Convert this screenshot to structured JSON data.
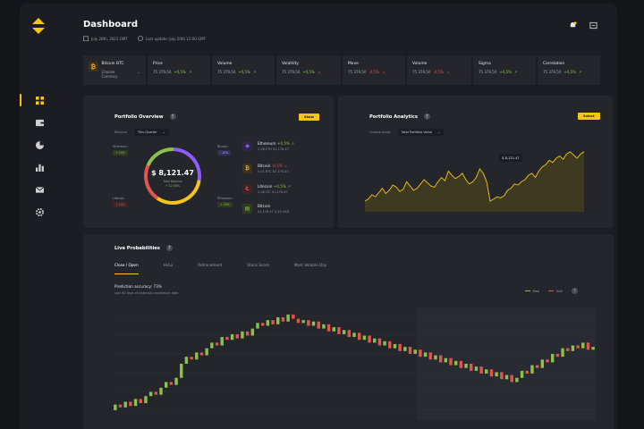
{
  "header": {
    "title": "Dashboard",
    "date": "July 20th, 2023 GMT",
    "last_update": "Last update: July 20th 12:00 GMT"
  },
  "ticker": [
    {
      "label": "Bitcoin BTC",
      "sub": "Choose Currency"
    },
    {
      "label": "Price",
      "value": "75 379,50",
      "change": "+0,5%"
    },
    {
      "label": "Volume",
      "value": "75 379,50",
      "change": "+0,5%"
    },
    {
      "label": "Volatility",
      "value": "75 379,50",
      "change": "+0,5%"
    },
    {
      "label": "Move",
      "value": "75 379,50",
      "change": "-0,5%"
    },
    {
      "label": "Volume",
      "value": "75 379,50",
      "change": "-0,5%"
    },
    {
      "label": "Sigma",
      "value": "75 379,50",
      "change": "+0,5%"
    },
    {
      "label": "Correlation",
      "value": "75 379,50",
      "change": "+0,5%"
    }
  ],
  "portfolio": {
    "title": "Portfolio Overview",
    "button": "Show",
    "field_label": "Balance",
    "field_value": "This Quarter",
    "total": "$ 8,121.47",
    "total_sub": "Total Balance",
    "total_change": "+ 12,50%",
    "slices": [
      {
        "name": "Ethereum",
        "tag": "+ 20%",
        "color": "#8e5cf7",
        "value": 28
      },
      {
        "name": "Bitcoin",
        "tag": "- 15%",
        "color": "#f5c518",
        "value": 32
      },
      {
        "name": "Litecoin",
        "tag": "+ 10%",
        "color": "#e0554f",
        "value": 22
      },
      {
        "name": "Ethereum",
        "tag": "+ 20%",
        "color": "#8bc34a",
        "value": 18
      }
    ],
    "assets": [
      {
        "name": "Ethereum",
        "change": "+0,5%",
        "sub": "2,08 ETH  $2,178.47",
        "icon": "ethereum-icon",
        "color": "#8e5cf7"
      },
      {
        "name": "Bitcoin",
        "change": "-0,5%",
        "sub": "0,01 BTC  $3,178.47",
        "icon": "bitcoin-icon",
        "color": "#f5a623"
      },
      {
        "name": "Litecoin",
        "change": "+0,5%",
        "sub": "2,08 LTC  $1,178.47",
        "icon": "litecoin-icon",
        "color": "#e0554f"
      },
      {
        "name": "Bitcoin",
        "change": "",
        "sub": "$1,178.47  4,19 USD",
        "icon": "cash-icon",
        "color": "#8bc34a"
      }
    ]
  },
  "analytics": {
    "title": "Portfolio Analytics",
    "button": "Select",
    "field_label": "Choose Asset",
    "field_value": "Total Portfolio Value",
    "tooltip": "$ 8,121.47"
  },
  "live": {
    "title": "Live Probabilities",
    "tabs": [
      "Close / Open",
      "Hi/Lo",
      "Retracement",
      "Stock Score",
      "Most Volatile Day"
    ],
    "prediction": "Prediction accuracy: 73%",
    "prediction_sub": "Last 90 days of historical candlestick data",
    "legend": [
      {
        "name": "Real",
        "color": "#8bc34a"
      },
      {
        "name": "Bull",
        "color": "#e0554f"
      }
    ]
  },
  "chart_data": [
    {
      "type": "area",
      "title": "Portfolio Analytics",
      "values": [
        40,
        42,
        46,
        44,
        48,
        52,
        47,
        50,
        55,
        53,
        49,
        51,
        58,
        54,
        50,
        52,
        56,
        60,
        57,
        54,
        53,
        58,
        62,
        59,
        68,
        64,
        61,
        63,
        66,
        60,
        56,
        58,
        62,
        70,
        66,
        58,
        40,
        42,
        44,
        43,
        45,
        50,
        52,
        56,
        55,
        58,
        60,
        64,
        66,
        62,
        68,
        72,
        74,
        78,
        76,
        80,
        82,
        79,
        84,
        86,
        83,
        80,
        84,
        86
      ]
    },
    {
      "type": "candlestick",
      "title": "Live Probabilities",
      "values": [
        [
          22,
          26
        ],
        [
          26,
          24
        ],
        [
          24,
          28
        ],
        [
          28,
          25
        ],
        [
          25,
          30
        ],
        [
          30,
          27
        ],
        [
          27,
          32
        ],
        [
          32,
          35
        ],
        [
          35,
          33
        ],
        [
          33,
          38
        ],
        [
          38,
          42
        ],
        [
          42,
          40
        ],
        [
          40,
          45
        ],
        [
          45,
          55
        ],
        [
          55,
          60
        ],
        [
          60,
          58
        ],
        [
          58,
          63
        ],
        [
          63,
          61
        ],
        [
          61,
          66
        ],
        [
          66,
          70
        ],
        [
          70,
          68
        ],
        [
          68,
          74
        ],
        [
          74,
          72
        ],
        [
          72,
          76
        ],
        [
          76,
          73
        ],
        [
          73,
          78
        ],
        [
          78,
          75
        ],
        [
          75,
          80
        ],
        [
          80,
          84
        ],
        [
          84,
          82
        ],
        [
          82,
          86
        ],
        [
          86,
          83
        ],
        [
          83,
          88
        ],
        [
          88,
          85
        ],
        [
          85,
          90
        ],
        [
          90,
          87
        ],
        [
          87,
          84
        ],
        [
          84,
          86
        ],
        [
          86,
          82
        ],
        [
          82,
          85
        ],
        [
          85,
          80
        ],
        [
          80,
          83
        ],
        [
          83,
          78
        ],
        [
          78,
          81
        ],
        [
          81,
          76
        ],
        [
          76,
          79
        ],
        [
          79,
          74
        ],
        [
          74,
          77
        ],
        [
          77,
          72
        ],
        [
          72,
          75
        ],
        [
          75,
          70
        ],
        [
          70,
          73
        ],
        [
          73,
          68
        ],
        [
          68,
          71
        ],
        [
          71,
          66
        ],
        [
          66,
          69
        ],
        [
          69,
          64
        ],
        [
          64,
          67
        ],
        [
          67,
          62
        ],
        [
          62,
          65
        ],
        [
          65,
          60
        ],
        [
          60,
          63
        ],
        [
          63,
          58
        ],
        [
          58,
          61
        ],
        [
          61,
          56
        ],
        [
          56,
          59
        ],
        [
          59,
          54
        ],
        [
          54,
          57
        ],
        [
          57,
          52
        ],
        [
          52,
          55
        ],
        [
          55,
          50
        ],
        [
          50,
          53
        ],
        [
          53,
          48
        ],
        [
          48,
          51
        ],
        [
          51,
          46
        ],
        [
          46,
          49
        ],
        [
          49,
          44
        ],
        [
          44,
          47
        ],
        [
          47,
          42
        ],
        [
          42,
          45
        ],
        [
          45,
          50
        ],
        [
          50,
          48
        ],
        [
          48,
          54
        ],
        [
          54,
          52
        ],
        [
          52,
          58
        ],
        [
          58,
          56
        ],
        [
          56,
          62
        ],
        [
          62,
          60
        ],
        [
          60,
          66
        ],
        [
          66,
          64
        ],
        [
          64,
          68
        ],
        [
          68,
          66
        ],
        [
          66,
          70
        ],
        [
          70,
          65
        ],
        [
          65,
          67
        ]
      ]
    }
  ]
}
